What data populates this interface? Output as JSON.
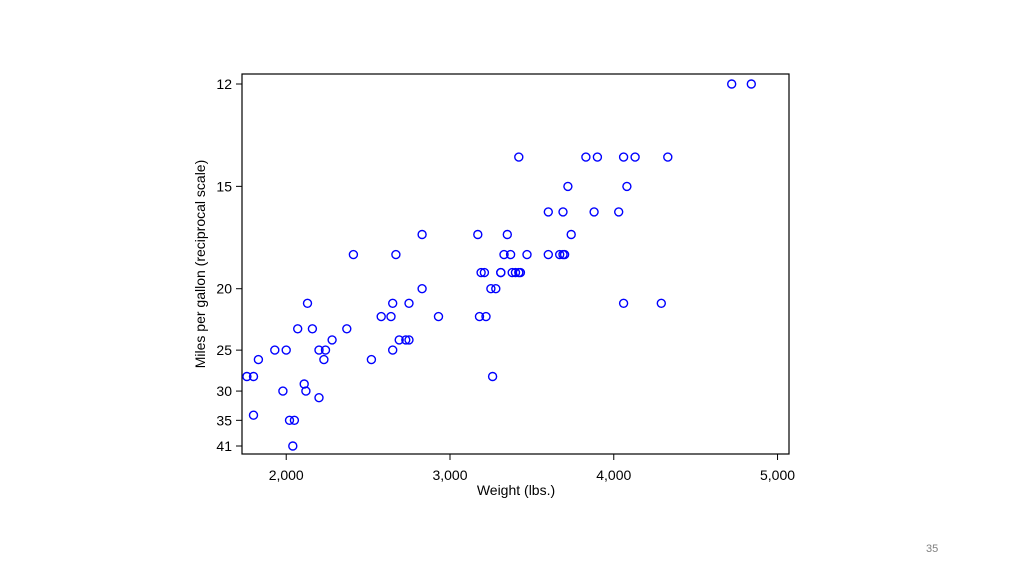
{
  "slide": {
    "page_number": "35"
  },
  "colors": {
    "marker": "#0000ff",
    "frame": "#000000",
    "background": "#ffffff"
  },
  "chart_data": {
    "type": "scatter",
    "xlabel": "Weight (lbs.)",
    "ylabel": "Miles per gallon (reciprocal scale)",
    "x_scale": "linear",
    "y_scale": "reciprocal",
    "xlim": [
      1730,
      5070
    ],
    "ylim": [
      12,
      42
    ],
    "x_ticks": [
      2000,
      3000,
      4000,
      5000
    ],
    "x_tick_labels": [
      "2,000",
      "3,000",
      "4,000",
      "5,000"
    ],
    "y_ticks": [
      12,
      15,
      20,
      25,
      30,
      35,
      41
    ],
    "y_tick_labels": [
      "12",
      "15",
      "20",
      "25",
      "30",
      "35",
      "41"
    ],
    "grid": false,
    "marker": "hollow-circle",
    "points": [
      [
        4720,
        12
      ],
      [
        4840,
        12
      ],
      [
        3420,
        14
      ],
      [
        3830,
        14
      ],
      [
        3900,
        14
      ],
      [
        4060,
        14
      ],
      [
        4130,
        14
      ],
      [
        4330,
        14
      ],
      [
        3720,
        15
      ],
      [
        4080,
        15
      ],
      [
        3600,
        16
      ],
      [
        3690,
        16
      ],
      [
        3880,
        16
      ],
      [
        4030,
        16
      ],
      [
        2830,
        17
      ],
      [
        3170,
        17
      ],
      [
        3350,
        17
      ],
      [
        3740,
        17
      ],
      [
        2410,
        18
      ],
      [
        2670,
        18
      ],
      [
        3330,
        18
      ],
      [
        3370,
        18
      ],
      [
        3470,
        18
      ],
      [
        3600,
        18
      ],
      [
        3670,
        18
      ],
      [
        3690,
        18
      ],
      [
        3700,
        18
      ],
      [
        3190,
        19
      ],
      [
        3210,
        19
      ],
      [
        3310,
        19
      ],
      [
        3380,
        19
      ],
      [
        3400,
        19
      ],
      [
        3420,
        19
      ],
      [
        3430,
        19
      ],
      [
        3310,
        19
      ],
      [
        2830,
        20
      ],
      [
        3250,
        20
      ],
      [
        3280,
        20
      ],
      [
        2130,
        21
      ],
      [
        2650,
        21
      ],
      [
        2750,
        21
      ],
      [
        4060,
        21
      ],
      [
        4290,
        21
      ],
      [
        2580,
        22
      ],
      [
        2640,
        22
      ],
      [
        2930,
        22
      ],
      [
        3180,
        22
      ],
      [
        3220,
        22
      ],
      [
        2070,
        23
      ],
      [
        2160,
        23
      ],
      [
        2370,
        23
      ],
      [
        2280,
        24
      ],
      [
        2690,
        24
      ],
      [
        2730,
        24
      ],
      [
        2750,
        24
      ],
      [
        1930,
        25
      ],
      [
        2000,
        25
      ],
      [
        2200,
        25
      ],
      [
        2240,
        25
      ],
      [
        2650,
        25
      ],
      [
        1830,
        26
      ],
      [
        2230,
        26
      ],
      [
        2520,
        26
      ],
      [
        1760,
        28
      ],
      [
        1800,
        28
      ],
      [
        3260,
        28
      ],
      [
        2110,
        29
      ],
      [
        1980,
        30
      ],
      [
        2120,
        30
      ],
      [
        2200,
        31
      ],
      [
        1800,
        34
      ],
      [
        2020,
        35
      ],
      [
        2050,
        35
      ],
      [
        2040,
        41
      ]
    ]
  }
}
